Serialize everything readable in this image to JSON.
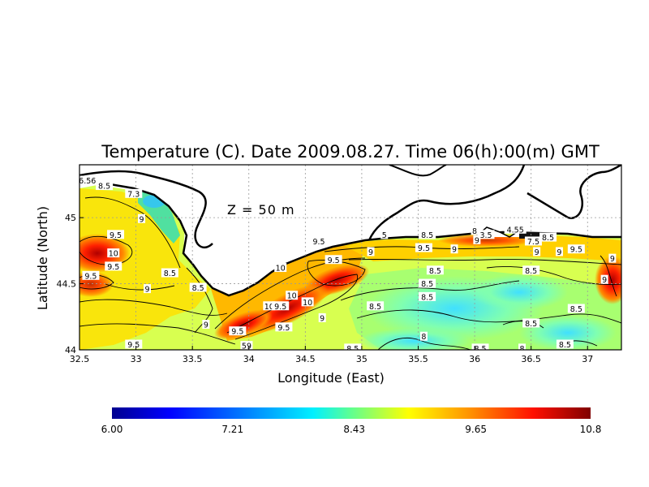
{
  "chart_data": {
    "type": "heatmap",
    "title": "Temperature (C). Date 2009.08.27. Time 06(h):00(m) GMT",
    "xlabel": "Longitude (East)",
    "ylabel": "Latitude (North)",
    "annotation": "Z  =  50  m",
    "xlim": [
      32.5,
      37.3
    ],
    "ylim": [
      44.0,
      45.4
    ],
    "x_ticks": [
      32.5,
      33,
      33.5,
      34,
      34.5,
      35,
      35.5,
      36,
      36.5,
      37
    ],
    "x_tick_labels": [
      "32.5",
      "33",
      "33.5",
      "34",
      "34.5",
      "35",
      "35.5",
      "36",
      "36.5",
      "37"
    ],
    "y_ticks": [
      44,
      44.5,
      45
    ],
    "y_tick_labels": [
      "44",
      "44.5",
      "45"
    ],
    "grid": true,
    "colorbar": {
      "min": 6.0,
      "max": 10.8,
      "ticks": [
        6.0,
        7.21,
        8.43,
        9.65,
        10.8
      ],
      "tick_labels": [
        "6.00",
        "7.21",
        "8.43",
        "9.65",
        "10.8"
      ],
      "colors": [
        "#00008f",
        "#0060ff",
        "#00ffff",
        "#ffff00",
        "#ff6000",
        "#800000"
      ]
    },
    "contour_labels": [
      {
        "text": "6.56",
        "lon": 32.57,
        "lat": 45.28
      },
      {
        "text": "8.5",
        "lon": 32.72,
        "lat": 45.24
      },
      {
        "text": "7.3",
        "lon": 32.98,
        "lat": 45.18
      },
      {
        "text": "9",
        "lon": 33.05,
        "lat": 44.99
      },
      {
        "text": "9.5",
        "lon": 32.82,
        "lat": 44.87
      },
      {
        "text": "10",
        "lon": 32.8,
        "lat": 44.73
      },
      {
        "text": "9.5",
        "lon": 32.8,
        "lat": 44.63
      },
      {
        "text": "9.5",
        "lon": 32.6,
        "lat": 44.56
      },
      {
        "text": "9",
        "lon": 33.1,
        "lat": 44.46
      },
      {
        "text": "8.5",
        "lon": 33.3,
        "lat": 44.58
      },
      {
        "text": "8.5",
        "lon": 33.55,
        "lat": 44.47
      },
      {
        "text": "9",
        "lon": 33.62,
        "lat": 44.19
      },
      {
        "text": "9.5",
        "lon": 33.9,
        "lat": 44.14
      },
      {
        "text": "9.5",
        "lon": 32.98,
        "lat": 44.04
      },
      {
        "text": "59",
        "lon": 33.98,
        "lat": 44.03
      },
      {
        "text": "10",
        "lon": 34.18,
        "lat": 44.33
      },
      {
        "text": "9.5",
        "lon": 34.28,
        "lat": 44.33
      },
      {
        "text": "10",
        "lon": 34.38,
        "lat": 44.41
      },
      {
        "text": "10",
        "lon": 34.52,
        "lat": 44.36
      },
      {
        "text": "9.5",
        "lon": 34.31,
        "lat": 44.17
      },
      {
        "text": "9",
        "lon": 34.65,
        "lat": 44.24
      },
      {
        "text": "10",
        "lon": 34.28,
        "lat": 44.62
      },
      {
        "text": "9.5",
        "lon": 34.62,
        "lat": 44.82
      },
      {
        "text": "9.5",
        "lon": 34.75,
        "lat": 44.68
      },
      {
        "text": "9",
        "lon": 35.08,
        "lat": 44.74
      },
      {
        "text": "8.5",
        "lon": 35.58,
        "lat": 44.87
      },
      {
        "text": "5",
        "lon": 35.2,
        "lat": 44.87
      },
      {
        "text": "9.5",
        "lon": 35.55,
        "lat": 44.77
      },
      {
        "text": "9",
        "lon": 35.82,
        "lat": 44.76
      },
      {
        "text": "8",
        "lon": 36.0,
        "lat": 44.9
      },
      {
        "text": "3.5",
        "lon": 36.1,
        "lat": 44.87
      },
      {
        "text": "9",
        "lon": 36.02,
        "lat": 44.83
      },
      {
        "text": "8.5",
        "lon": 35.65,
        "lat": 44.6
      },
      {
        "text": "8.5",
        "lon": 35.58,
        "lat": 44.5
      },
      {
        "text": "8.5",
        "lon": 35.58,
        "lat": 44.4
      },
      {
        "text": "8.5",
        "lon": 35.12,
        "lat": 44.33
      },
      {
        "text": "8",
        "lon": 35.55,
        "lat": 44.1
      },
      {
        "text": "8.5",
        "lon": 34.92,
        "lat": 44.01
      },
      {
        "text": "8.5",
        "lon": 36.05,
        "lat": 44.01
      },
      {
        "text": "8",
        "lon": 36.42,
        "lat": 44.01
      },
      {
        "text": "4.55",
        "lon": 36.36,
        "lat": 44.91
      },
      {
        "text": "7.5",
        "lon": 36.52,
        "lat": 44.82
      },
      {
        "text": "8.5",
        "lon": 36.65,
        "lat": 44.85
      },
      {
        "text": "9",
        "lon": 36.55,
        "lat": 44.74
      },
      {
        "text": "9",
        "lon": 36.75,
        "lat": 44.74
      },
      {
        "text": "9.5",
        "lon": 36.9,
        "lat": 44.76
      },
      {
        "text": "9",
        "lon": 37.22,
        "lat": 44.69
      },
      {
        "text": "9",
        "lon": 37.15,
        "lat": 44.53
      },
      {
        "text": "8.5",
        "lon": 36.5,
        "lat": 44.6
      },
      {
        "text": "8.5",
        "lon": 36.9,
        "lat": 44.31
      },
      {
        "text": "8.5",
        "lon": 36.5,
        "lat": 44.2
      },
      {
        "text": "8.5",
        "lon": 36.8,
        "lat": 44.04
      }
    ]
  }
}
